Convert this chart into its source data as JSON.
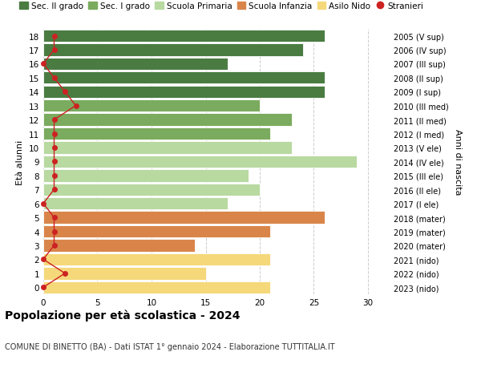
{
  "ages": [
    18,
    17,
    16,
    15,
    14,
    13,
    12,
    11,
    10,
    9,
    8,
    7,
    6,
    5,
    4,
    3,
    2,
    1,
    0
  ],
  "right_labels": [
    "2005 (V sup)",
    "2006 (IV sup)",
    "2007 (III sup)",
    "2008 (II sup)",
    "2009 (I sup)",
    "2010 (III med)",
    "2011 (II med)",
    "2012 (I med)",
    "2013 (V ele)",
    "2014 (IV ele)",
    "2015 (III ele)",
    "2016 (II ele)",
    "2017 (I ele)",
    "2018 (mater)",
    "2019 (mater)",
    "2020 (mater)",
    "2021 (nido)",
    "2022 (nido)",
    "2023 (nido)"
  ],
  "bar_values": [
    26,
    24,
    17,
    26,
    26,
    20,
    23,
    21,
    23,
    29,
    19,
    20,
    17,
    26,
    21,
    14,
    21,
    15,
    21
  ],
  "bar_colors": [
    "#4a7c42",
    "#4a7c42",
    "#4a7c42",
    "#4a7c42",
    "#4a7c42",
    "#7aab5e",
    "#7aab5e",
    "#7aab5e",
    "#b8d9a0",
    "#b8d9a0",
    "#b8d9a0",
    "#b8d9a0",
    "#b8d9a0",
    "#d9854a",
    "#d9854a",
    "#d9854a",
    "#f5d87a",
    "#f5d87a",
    "#f5d87a"
  ],
  "stranieri_values": [
    1,
    1,
    0,
    1,
    2,
    3,
    1,
    1,
    1,
    1,
    1,
    1,
    0,
    1,
    1,
    1,
    0,
    2,
    0
  ],
  "stranieri_color": "#cc2222",
  "legend_entries": [
    {
      "label": "Sec. II grado",
      "color": "#4a7c42"
    },
    {
      "label": "Sec. I grado",
      "color": "#7aab5e"
    },
    {
      "label": "Scuola Primaria",
      "color": "#b8d9a0"
    },
    {
      "label": "Scuola Infanzia",
      "color": "#d9854a"
    },
    {
      "label": "Asilo Nido",
      "color": "#f5d87a"
    },
    {
      "label": "Stranieri",
      "color": "#cc2222"
    }
  ],
  "ylabel": "Età alunni",
  "right_ylabel": "Anni di nascita",
  "title": "Popolazione per età scolastica - 2024",
  "subtitle": "COMUNE DI BINETTO (BA) - Dati ISTAT 1° gennaio 2024 - Elaborazione TUTTITALIA.IT",
  "xlim": [
    0,
    32
  ],
  "xticks": [
    0,
    5,
    10,
    15,
    20,
    25,
    30
  ],
  "background_color": "#ffffff",
  "grid_color": "#cccccc"
}
